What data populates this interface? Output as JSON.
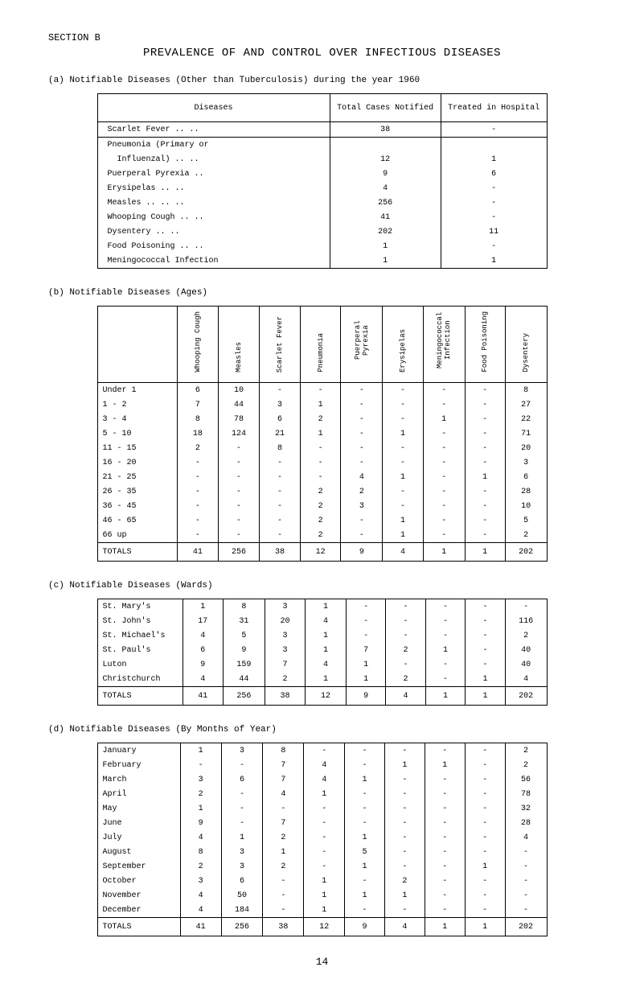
{
  "page": {
    "section_label": "SECTION B",
    "main_title": "PREVALENCE OF AND CONTROL OVER INFECTIOUS DISEASES",
    "subtitle_a": "(a) Notifiable Diseases (Other than Tuberculosis) during the year 1960",
    "subtitle_b": "(b) Notifiable Diseases (Ages)",
    "subtitle_c": "(c) Notifiable Diseases (Wards)",
    "subtitle_d": "(d) Notifiable Diseases (By Months of Year)",
    "page_number": "14"
  },
  "table_a": {
    "headers": [
      "Diseases",
      "Total Cases Notified",
      "Treated in Hospital"
    ],
    "rows": [
      {
        "label": "Scarlet Fever ..  ..",
        "notified": "38",
        "hospital": "-"
      },
      {
        "label": "Pneumonia (Primary or",
        "notified": "",
        "hospital": ""
      },
      {
        "label": "Influenzal) ..  ..",
        "indent": true,
        "notified": "12",
        "hospital": "1"
      },
      {
        "label": "Puerperal Pyrexia  ..",
        "notified": "9",
        "hospital": "6"
      },
      {
        "label": "Erysipelas    ..  ..",
        "notified": "4",
        "hospital": "-"
      },
      {
        "label": "Measles ..    ..  ..",
        "notified": "256",
        "hospital": "-"
      },
      {
        "label": "Whooping Cough ..  ..",
        "notified": "41",
        "hospital": "-"
      },
      {
        "label": "Dysentery     ..  ..",
        "notified": "202",
        "hospital": "11"
      },
      {
        "label": "Food Poisoning ..  ..",
        "notified": "1",
        "hospital": "-"
      },
      {
        "label": "Meningococcal Infection",
        "notified": "1",
        "hospital": "1"
      }
    ]
  },
  "table_b": {
    "col_headers": [
      "",
      "Whooping Cough",
      "Measles",
      "Scarlet Fever",
      "Pneumonia",
      "Puerperal Pyrexia",
      "Erysipelas",
      "Meningococcal Infection",
      "Food Poisoning",
      "Dysentery"
    ],
    "rows": [
      {
        "label": "Under 1",
        "cells": [
          "6",
          "10",
          "-",
          "-",
          "-",
          "-",
          "-",
          "-",
          "8"
        ]
      },
      {
        "label": "1 - 2",
        "cells": [
          "7",
          "44",
          "3",
          "1",
          "-",
          "-",
          "-",
          "-",
          "27"
        ]
      },
      {
        "label": "3 - 4",
        "cells": [
          "8",
          "78",
          "6",
          "2",
          "-",
          "-",
          "1",
          "-",
          "22"
        ]
      },
      {
        "label": "5 - 10",
        "cells": [
          "18",
          "124",
          "21",
          "1",
          "-",
          "1",
          "-",
          "-",
          "71"
        ]
      },
      {
        "label": "11 - 15",
        "cells": [
          "2",
          "-",
          "8",
          "-",
          "-",
          "-",
          "-",
          "-",
          "20"
        ]
      },
      {
        "label": "16 - 20",
        "cells": [
          "-",
          "-",
          "-",
          "-",
          "-",
          "-",
          "-",
          "-",
          "3"
        ]
      },
      {
        "label": "21 - 25",
        "cells": [
          "-",
          "-",
          "-",
          "-",
          "4",
          "1",
          "-",
          "1",
          "6"
        ]
      },
      {
        "label": "26 - 35",
        "cells": [
          "-",
          "-",
          "-",
          "2",
          "2",
          "-",
          "-",
          "-",
          "28"
        ]
      },
      {
        "label": "36 - 45",
        "cells": [
          "-",
          "-",
          "-",
          "2",
          "3",
          "-",
          "-",
          "-",
          "10"
        ]
      },
      {
        "label": "46 - 65",
        "cells": [
          "-",
          "-",
          "-",
          "2",
          "-",
          "1",
          "-",
          "-",
          "5"
        ]
      },
      {
        "label": "66 up",
        "cells": [
          "-",
          "-",
          "-",
          "2",
          "-",
          "1",
          "-",
          "-",
          "2"
        ]
      }
    ],
    "totals": {
      "label": "TOTALS",
      "cells": [
        "41",
        "256",
        "38",
        "12",
        "9",
        "4",
        "1",
        "1",
        "202"
      ]
    }
  },
  "table_c": {
    "rows": [
      {
        "label": "St. Mary's",
        "cells": [
          "1",
          "8",
          "3",
          "1",
          "-",
          "-",
          "-",
          "-",
          "-"
        ]
      },
      {
        "label": "St. John's",
        "cells": [
          "17",
          "31",
          "20",
          "4",
          "-",
          "-",
          "-",
          "-",
          "116"
        ]
      },
      {
        "label": "St. Michael's",
        "cells": [
          "4",
          "5",
          "3",
          "1",
          "-",
          "-",
          "-",
          "-",
          "2"
        ]
      },
      {
        "label": "St. Paul's",
        "cells": [
          "6",
          "9",
          "3",
          "1",
          "7",
          "2",
          "1",
          "-",
          "40"
        ]
      },
      {
        "label": "Luton",
        "cells": [
          "9",
          "159",
          "7",
          "4",
          "1",
          "-",
          "-",
          "-",
          "40"
        ]
      },
      {
        "label": "Christchurch",
        "cells": [
          "4",
          "44",
          "2",
          "1",
          "1",
          "2",
          "-",
          "1",
          "4"
        ]
      }
    ],
    "totals": {
      "label": "TOTALS",
      "cells": [
        "41",
        "256",
        "38",
        "12",
        "9",
        "4",
        "1",
        "1",
        "202"
      ]
    }
  },
  "table_d": {
    "rows": [
      {
        "label": "January",
        "cells": [
          "1",
          "3",
          "8",
          "-",
          "-",
          "-",
          "-",
          "-",
          "2"
        ]
      },
      {
        "label": "February",
        "cells": [
          "-",
          "-",
          "7",
          "4",
          "-",
          "1",
          "1",
          "-",
          "2"
        ]
      },
      {
        "label": "March",
        "cells": [
          "3",
          "6",
          "7",
          "4",
          "1",
          "-",
          "-",
          "-",
          "56"
        ]
      },
      {
        "label": "April",
        "cells": [
          "2",
          "-",
          "4",
          "1",
          "-",
          "-",
          "-",
          "-",
          "78"
        ]
      },
      {
        "label": "May",
        "cells": [
          "1",
          "-",
          "-",
          "-",
          "-",
          "-",
          "-",
          "-",
          "32"
        ]
      },
      {
        "label": "June",
        "cells": [
          "9",
          "-",
          "7",
          "-",
          "-",
          "-",
          "-",
          "-",
          "28"
        ]
      },
      {
        "label": "July",
        "cells": [
          "4",
          "1",
          "2",
          "-",
          "1",
          "-",
          "-",
          "-",
          "4"
        ]
      },
      {
        "label": "August",
        "cells": [
          "8",
          "3",
          "1",
          "-",
          "5",
          "-",
          "-",
          "-",
          "-"
        ]
      },
      {
        "label": "September",
        "cells": [
          "2",
          "3",
          "2",
          "-",
          "1",
          "-",
          "-",
          "1",
          "-"
        ]
      },
      {
        "label": "October",
        "cells": [
          "3",
          "6",
          "-",
          "1",
          "-",
          "2",
          "-",
          "-",
          "-"
        ]
      },
      {
        "label": "November",
        "cells": [
          "4",
          "50",
          "-",
          "1",
          "1",
          "1",
          "-",
          "-",
          "-"
        ]
      },
      {
        "label": "December",
        "cells": [
          "4",
          "184",
          "-",
          "1",
          "-",
          "-",
          "-",
          "-",
          "-"
        ]
      }
    ],
    "totals": {
      "label": "TOTALS",
      "cells": [
        "41",
        "256",
        "38",
        "12",
        "9",
        "4",
        "1",
        "1",
        "202"
      ]
    }
  }
}
